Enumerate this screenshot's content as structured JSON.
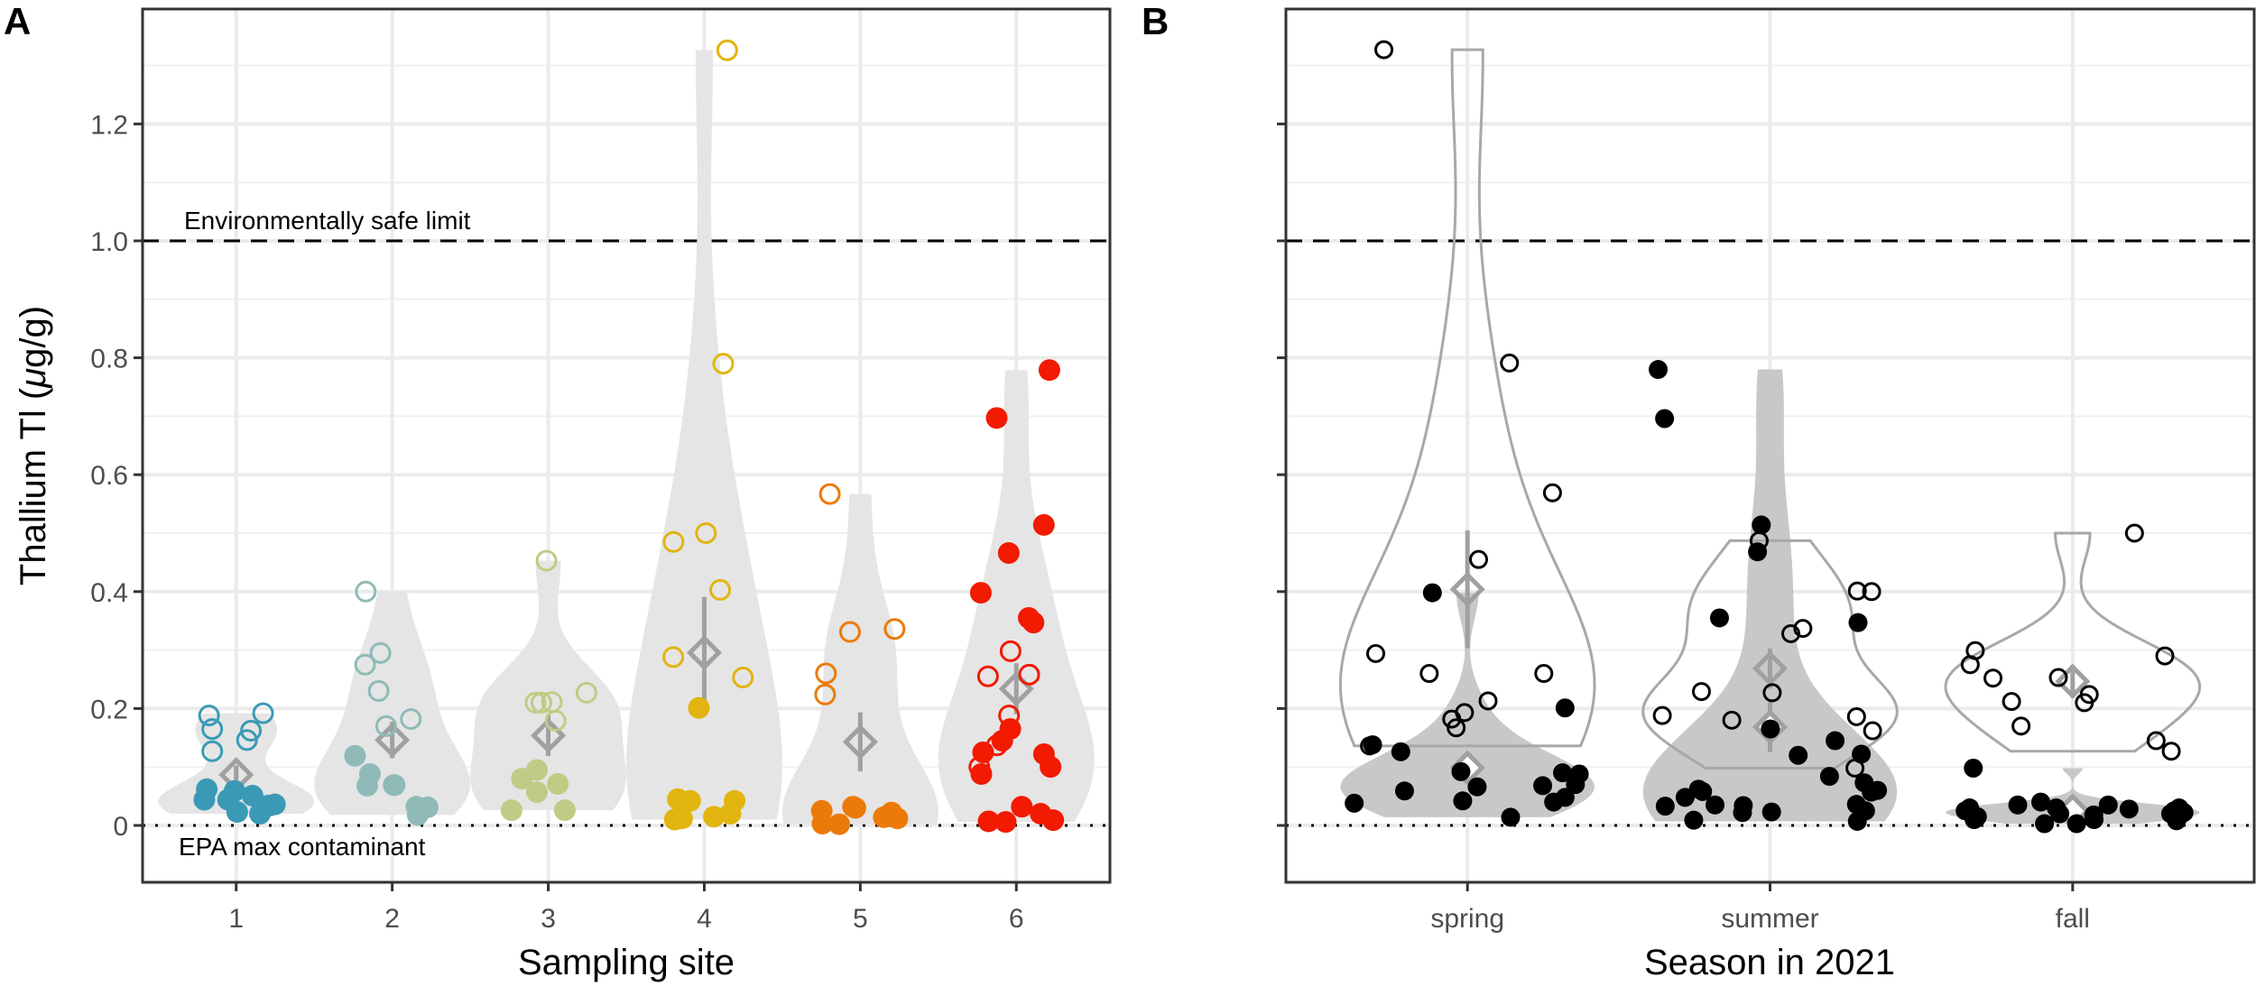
{
  "chart_data": [
    {
      "panel": "A",
      "type": "violin+scatter",
      "xlabel": "Sampling site",
      "ylabel": "Thallium Tl (",
      "ylabel_mu": "μ",
      "ylabel_end": "g/g)",
      "ylim": [
        -0.1,
        1.4
      ],
      "yticks": [
        0,
        0.2,
        0.4,
        0.6,
        0.8,
        1.0,
        1.2
      ],
      "ytick_labels": [
        "0",
        "0.2",
        "0.4",
        "0.6",
        "0.8",
        "1.0",
        "1.2"
      ],
      "grid": true,
      "categories": [
        "1",
        "2",
        "3",
        "4",
        "5",
        "6"
      ],
      "colors": [
        "#3a9ab5",
        "#8fbab8",
        "#bfcc85",
        "#e2b40f",
        "#ec7a08",
        "#f21a00"
      ],
      "groups": [
        {
          "category": "1",
          "open": [
            0.192,
            0.188,
            0.165,
            0.162,
            0.146,
            0.127
          ],
          "filled": [
            0.062,
            0.051,
            0.034,
            0.044,
            0.023,
            0.036,
            0.02,
            0.059,
            0.034,
            0.044
          ]
        },
        {
          "category": "2",
          "open": [
            0.4,
            0.295,
            0.275,
            0.23,
            0.182,
            0.17
          ],
          "filled": [
            0.119,
            0.088,
            0.069,
            0.068,
            0.069,
            0.031,
            0.032,
            0.018
          ]
        },
        {
          "category": "3",
          "open": [
            0.453,
            0.211,
            0.21,
            0.227,
            0.21,
            0.179
          ],
          "filled": [
            0.095,
            0.08,
            0.071,
            0.057,
            0.026,
            0.026
          ]
        },
        {
          "category": "4",
          "open": [
            1.326,
            0.79,
            0.5,
            0.485,
            0.403,
            0.288,
            0.253
          ],
          "filled": [
            0.201,
            0.042,
            0.045,
            0.042,
            0.012,
            0.015,
            0.01,
            0.02
          ]
        },
        {
          "category": "5",
          "open": [
            0.567,
            0.336,
            0.331,
            0.26,
            0.224
          ],
          "filled": [
            0.025,
            0.03,
            0.003,
            0.002,
            0.022,
            0.032,
            0.012,
            0.014
          ]
        },
        {
          "category": "6",
          "open": [
            0.298,
            0.255,
            0.258,
            0.188,
            0.137,
            0.1
          ],
          "filled": [
            0.779,
            0.697,
            0.514,
            0.466,
            0.398,
            0.355,
            0.347,
            0.165,
            0.145,
            0.125,
            0.122,
            0.1,
            0.088,
            0.032,
            0.02,
            0.007,
            0.006,
            0.009
          ]
        }
      ],
      "reference_lines": [
        {
          "value": 1.0,
          "style": "dashed",
          "label": "Environmentally safe limit"
        },
        {
          "value": 0.0,
          "style": "dotted",
          "label": "EPA max contaminant"
        }
      ]
    },
    {
      "panel": "B",
      "type": "violin+scatter",
      "xlabel": "Season in 2021",
      "ylim": [
        -0.1,
        1.4
      ],
      "yticks": [
        0,
        0.2,
        0.4,
        0.6,
        0.8,
        1.0,
        1.2
      ],
      "grid": true,
      "categories": [
        "spring",
        "summer",
        "fall"
      ],
      "groups": [
        {
          "category": "spring",
          "open": [
            1.327,
            0.791,
            0.569,
            0.455,
            0.294,
            0.26,
            0.26,
            0.213,
            0.193,
            0.182,
            0.167,
            0.136
          ],
          "filled": [
            0.398,
            0.126,
            0.201,
            0.138,
            0.09,
            0.088,
            0.092,
            0.068,
            0.066,
            0.07,
            0.059,
            0.048,
            0.04,
            0.042,
            0.038,
            0.014
          ]
        },
        {
          "category": "summer",
          "open": [
            0.487,
            0.401,
            0.4,
            0.337,
            0.328,
            0.229,
            0.227,
            0.186,
            0.18,
            0.188,
            0.162,
            0.098
          ],
          "filled": [
            0.78,
            0.696,
            0.514,
            0.468,
            0.347,
            0.355,
            0.165,
            0.145,
            0.122,
            0.12,
            0.084,
            0.073,
            0.06,
            0.058,
            0.062,
            0.057,
            0.048,
            0.035,
            0.033,
            0.036,
            0.034,
            0.023,
            0.022,
            0.025,
            0.009,
            0.007
          ]
        },
        {
          "category": "fall",
          "open": [
            0.5,
            0.299,
            0.29,
            0.275,
            0.253,
            0.252,
            0.224,
            0.21,
            0.212,
            0.17,
            0.145,
            0.127
          ],
          "filled": [
            0.098,
            0.02,
            0.018,
            0.025,
            0.012,
            0.008,
            0.03,
            0.035,
            0.01,
            0.04,
            0.028,
            0.003,
            0.025,
            0.02,
            0.022,
            0.03,
            0.003,
            0.015,
            0.03,
            0.01,
            0.035
          ]
        }
      ],
      "reference_lines": [
        {
          "value": 1.0,
          "style": "dashed"
        },
        {
          "value": 0.0,
          "style": "dotted"
        }
      ]
    }
  ],
  "panel_labels": [
    "A",
    "B"
  ]
}
